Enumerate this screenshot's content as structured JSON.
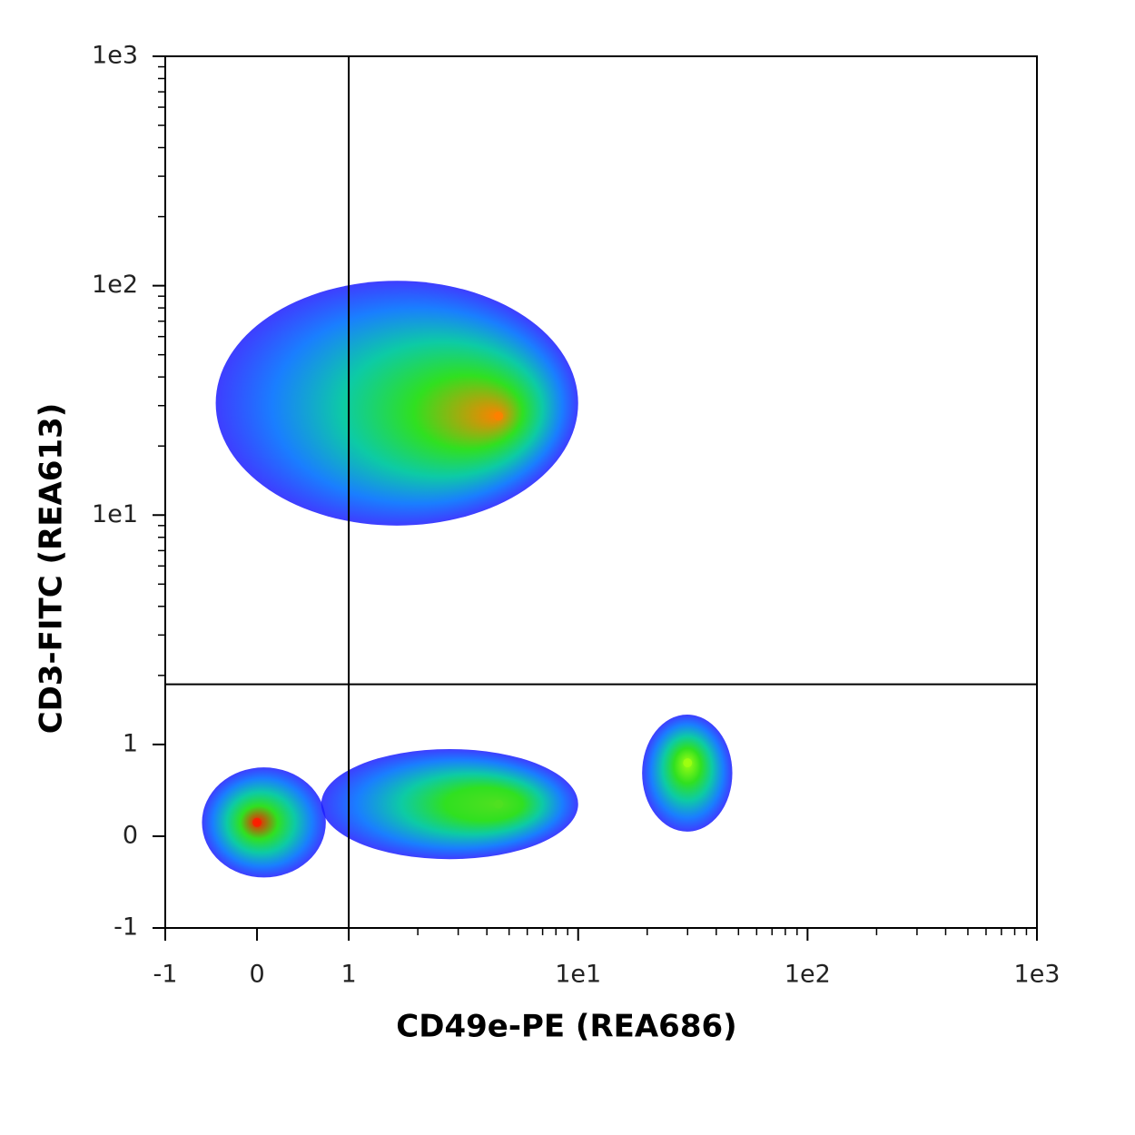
{
  "chart_data": {
    "type": "density",
    "x_label": "CD49e-PE (REA686)",
    "y_label": "CD3-FITC (REA613)",
    "xscale": "lin-log",
    "yscale": "lin-log",
    "xlim": [
      -1,
      1000
    ],
    "ylim": [
      -1,
      1000
    ],
    "xticks": [
      -1,
      0,
      1,
      {
        "value": 10,
        "label": "1e1"
      },
      {
        "value": 100,
        "label": "1e2"
      },
      {
        "value": 1000,
        "label": "1e3"
      }
    ],
    "yticks": [
      -1,
      0,
      1,
      {
        "value": 10,
        "label": "1e1"
      },
      {
        "value": 100,
        "label": "1e2"
      },
      {
        "value": 1000,
        "label": "1e3"
      }
    ],
    "xminorticks": [
      2,
      3,
      4,
      5,
      6,
      7,
      8,
      9,
      20,
      30,
      40,
      50,
      60,
      70,
      80,
      90,
      200,
      300,
      400,
      500,
      600,
      700,
      800,
      900
    ],
    "yminorticks": [
      2,
      3,
      4,
      5,
      6,
      7,
      8,
      9,
      20,
      30,
      40,
      50,
      60,
      70,
      80,
      90,
      200,
      300,
      400,
      500,
      600,
      700,
      800,
      900
    ],
    "gate": {
      "x": 1,
      "y": 1.83
    },
    "colormap": [
      "#1c1cff",
      "#0070ff",
      "#00c8a0",
      "#30e020"
    ],
    "populations": [
      {
        "x": [
          -0.6,
          0.75
        ],
        "y": [
          -0.45,
          0.75
        ],
        "peak": [
          0,
          0.15
        ],
        "color": "#ff1a00"
      },
      {
        "x": [
          0.7,
          10
        ],
        "y": [
          -0.25,
          0.95
        ],
        "peak": [
          4.5,
          0.35
        ],
        "color": "#50e020"
      },
      {
        "x": [
          19,
          47
        ],
        "y": [
          0.05,
          1.35
        ],
        "peak": [
          30,
          0.8
        ],
        "color": "#a0ff10"
      },
      {
        "x": [
          -0.45,
          10
        ],
        "y": [
          9,
          105
        ],
        "peak": [
          4.5,
          27
        ],
        "color": "#ff8000"
      }
    ]
  }
}
